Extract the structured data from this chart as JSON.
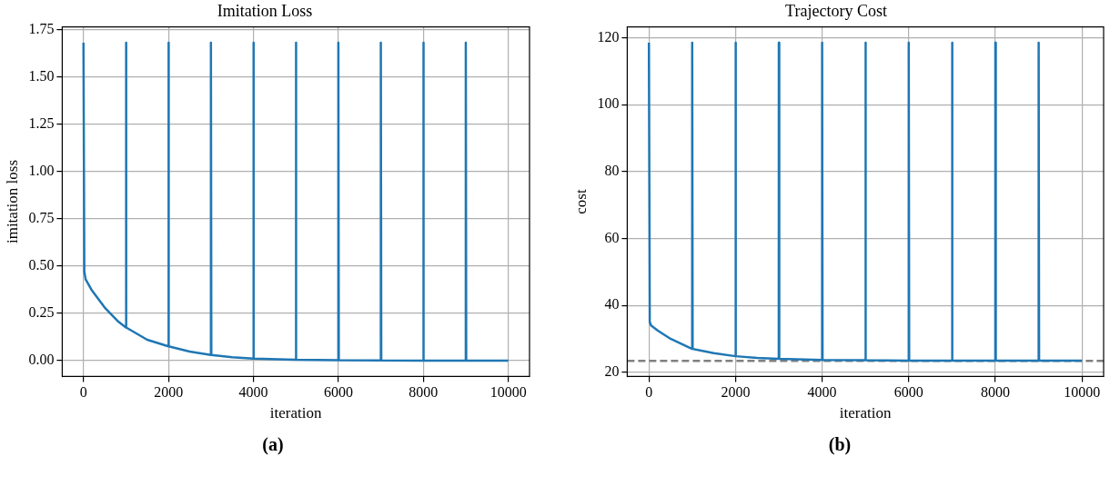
{
  "chart_data": [
    {
      "type": "line",
      "title": "Imitation Loss",
      "xlabel": "iteration",
      "ylabel": "imitation loss",
      "marker": "none",
      "grid": true,
      "series": [
        {
          "color": "#1f77b4",
          "x": [
            0,
            20,
            50,
            200,
            500,
            800,
            999,
            1000,
            1010,
            1500,
            1999,
            2000,
            2010,
            2500,
            2999,
            3000,
            3010,
            3500,
            3999,
            4000,
            4010,
            4999,
            5000,
            5010,
            5999,
            6000,
            6010,
            6999,
            7000,
            7010,
            7999,
            8000,
            8010,
            8999,
            9000,
            9010,
            10000
          ],
          "values": [
            1.68,
            0.47,
            0.43,
            0.37,
            0.28,
            0.21,
            0.175,
            1.68,
            0.175,
            0.11,
            0.075,
            1.68,
            0.075,
            0.048,
            0.03,
            1.68,
            0.03,
            0.018,
            0.01,
            1.68,
            0.01,
            0.004,
            1.68,
            0.004,
            0.002,
            1.68,
            0.002,
            0.001,
            1.68,
            0.001,
            0,
            1.68,
            0,
            0,
            1.68,
            0,
            0
          ]
        }
      ],
      "xlim": [
        -500,
        10500
      ],
      "xticks": [
        0,
        2000,
        4000,
        6000,
        8000,
        10000
      ],
      "ylim": [
        -0.084,
        1.764
      ],
      "yticks": [
        {
          "value": 0,
          "label": "0.00"
        },
        {
          "value": 0.25,
          "label": "0.25"
        },
        {
          "value": 0.5,
          "label": "0.50"
        },
        {
          "value": 0.75,
          "label": "0.75"
        },
        {
          "value": 1,
          "label": "1.00"
        },
        {
          "value": 1.25,
          "label": "1.25"
        },
        {
          "value": 1.5,
          "label": "1.50"
        },
        {
          "value": 1.75,
          "label": "1.75"
        }
      ],
      "annotations": [
        "(a)"
      ]
    },
    {
      "type": "line",
      "title": "Trajectory Cost",
      "xlabel": "iteration",
      "ylabel": "cost",
      "marker": "none",
      "grid": true,
      "series": [
        {
          "color": "#1f77b4",
          "x": [
            0,
            20,
            50,
            200,
            500,
            999,
            1000,
            1010,
            1500,
            1999,
            2000,
            2010,
            2500,
            2999,
            3000,
            3010,
            3999,
            4000,
            4010,
            4999,
            5000,
            5010,
            5999,
            6000,
            6010,
            6999,
            7000,
            7010,
            7999,
            8000,
            8010,
            8999,
            9000,
            9010,
            10000
          ],
          "values": [
            118.5,
            35,
            34,
            32.5,
            30,
            27,
            118.5,
            27,
            25.7,
            24.8,
            118.5,
            24.8,
            24.3,
            24,
            118.5,
            24,
            23.7,
            118.5,
            23.7,
            23.6,
            118.5,
            23.6,
            23.5,
            118.5,
            23.5,
            23.5,
            118.5,
            23.5,
            23.5,
            118.5,
            23.5,
            23.5,
            118.5,
            23.5,
            23.5
          ]
        }
      ],
      "ref_lines": [
        {
          "axis": "y",
          "value": 23.4,
          "color": "#808080",
          "line_style": "dashed"
        }
      ],
      "xlim": [
        -500,
        10500
      ],
      "xticks": [
        0,
        2000,
        4000,
        6000,
        8000,
        10000
      ],
      "ylim": [
        18.75,
        123.25
      ],
      "yticks": [
        20,
        40,
        60,
        80,
        100,
        120
      ],
      "annotations": [
        "(b)"
      ]
    }
  ]
}
